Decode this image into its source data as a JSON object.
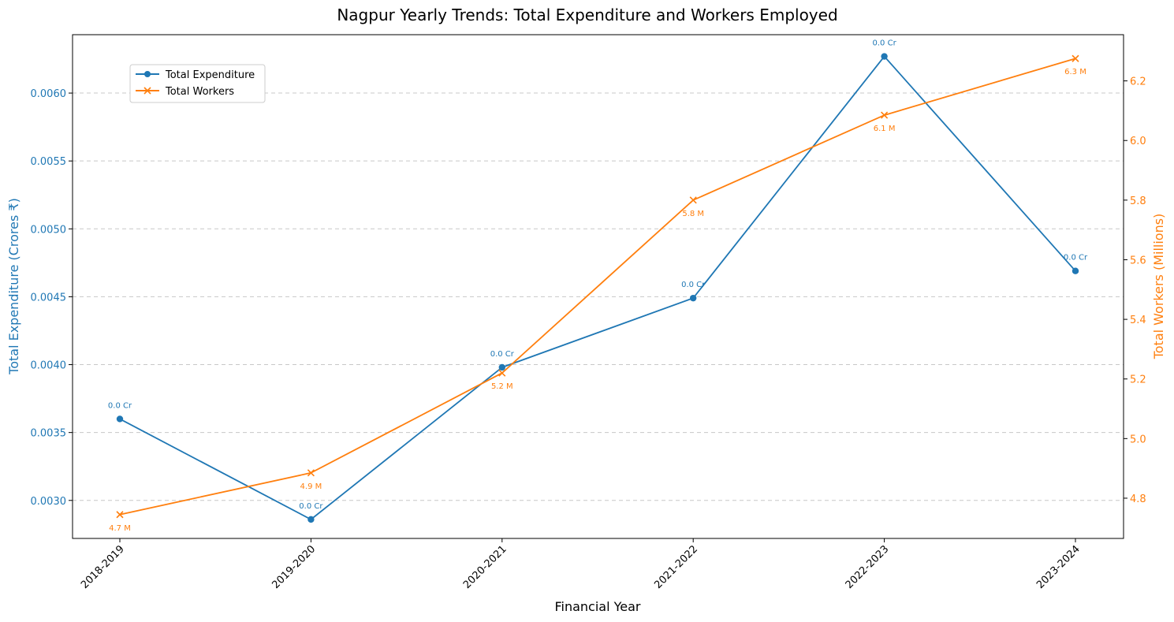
{
  "chart_data": {
    "type": "line",
    "title": "Nagpur Yearly Trends: Total Expenditure and Workers Employed",
    "xlabel": "Financial Year",
    "ylabel_left": "Total Expenditure (Crores ₹)",
    "ylabel_right": "Total Workers (Millions)",
    "categories": [
      "2018-2019",
      "2019-2020",
      "2020-2021",
      "2021-2022",
      "2022-2023",
      "2023-2024"
    ],
    "ylim_left": [
      0.00272,
      0.00643
    ],
    "ylim_right": [
      4.665,
      6.355
    ],
    "yticks_left": [
      "0.0030",
      "0.0035",
      "0.0040",
      "0.0045",
      "0.0050",
      "0.0055",
      "0.0060"
    ],
    "yticks_right": [
      "4.8",
      "5.0",
      "5.2",
      "5.4",
      "5.6",
      "5.8",
      "6.0",
      "6.2"
    ],
    "grid": "horizontal dashed",
    "legend_position": "upper-left",
    "series": [
      {
        "name": "Total Expenditure",
        "axis": "left",
        "color": "#1f77b4",
        "marker": "circle",
        "values": [
          0.0036,
          0.00286,
          0.00398,
          0.00449,
          0.00627,
          0.00469
        ],
        "labels": [
          "0.0 Cr",
          "0.0 Cr",
          "0.0 Cr",
          "0.0 Cr",
          "0.0 Cr",
          "0.0 Cr"
        ]
      },
      {
        "name": "Total Workers",
        "axis": "right",
        "color": "#ff7f0e",
        "marker": "x",
        "values": [
          4.745,
          4.885,
          5.22,
          5.8,
          6.085,
          6.275
        ],
        "labels": [
          "4.7 M",
          "4.9 M",
          "5.2 M",
          "5.8 M",
          "6.1 M",
          "6.3 M"
        ]
      }
    ]
  }
}
